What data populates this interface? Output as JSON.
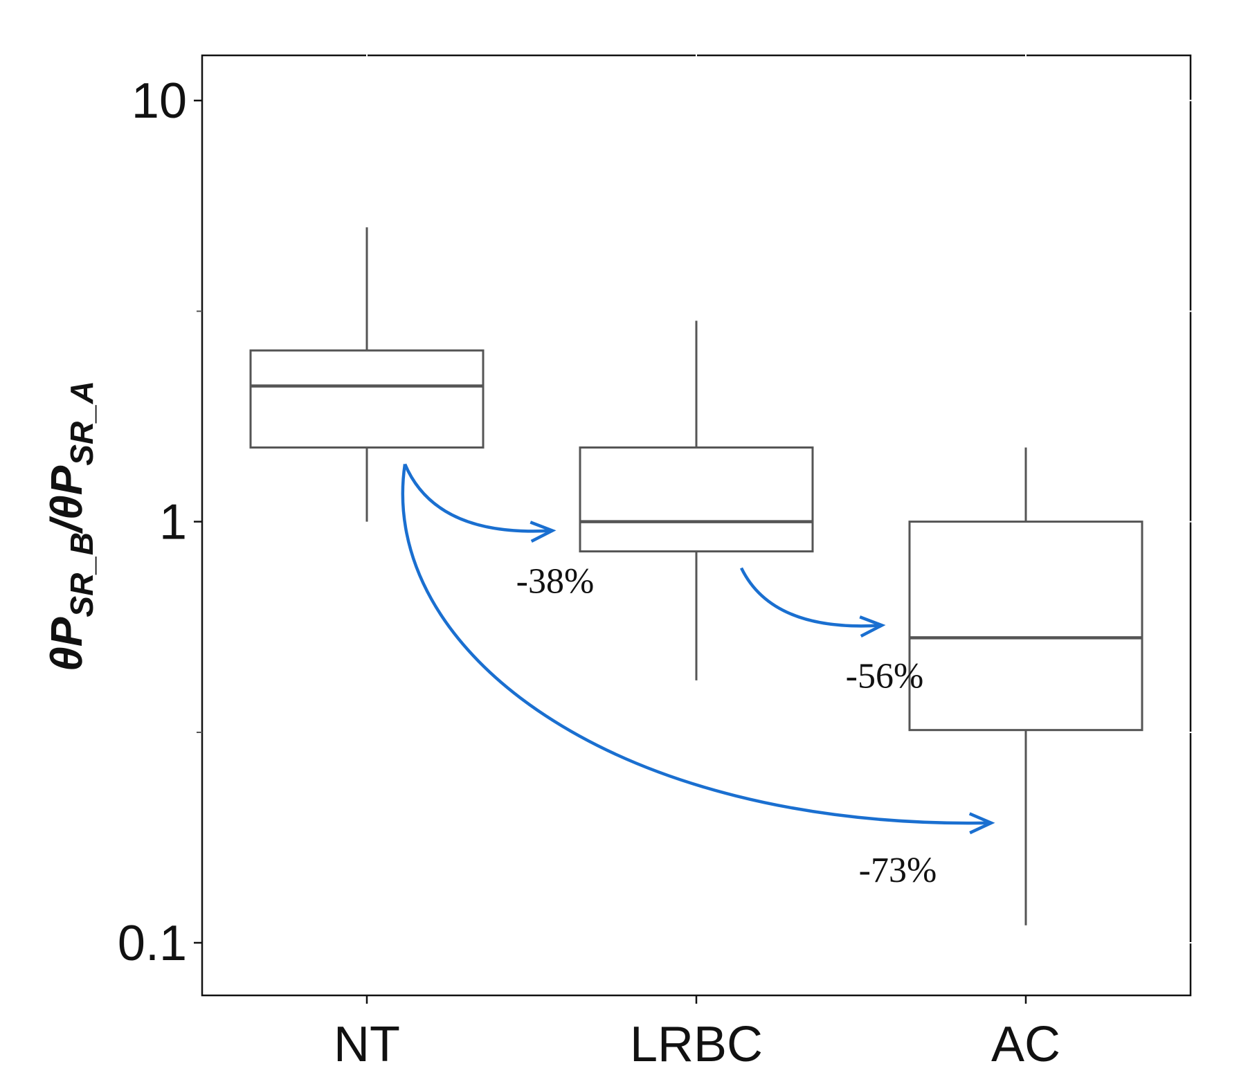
{
  "chart_data": {
    "type": "boxplot",
    "categories": [
      "NT",
      "LRBC",
      "AC"
    ],
    "boxes": [
      {
        "category": "NT",
        "whisker_low": 1.0,
        "q1": 1.5,
        "median": 2.1,
        "q3": 2.55,
        "whisker_high": 5.0
      },
      {
        "category": "LRBC",
        "whisker_low": 0.42,
        "q1": 0.85,
        "median": 1.0,
        "q3": 1.5,
        "whisker_high": 3.0
      },
      {
        "category": "AC",
        "whisker_low": 0.11,
        "q1": 0.32,
        "median": 0.53,
        "q3": 1.0,
        "whisker_high": 1.5
      }
    ],
    "y_scale": "log",
    "ylim": [
      0.075,
      12.8
    ],
    "y_ticks": [
      {
        "value": 10,
        "label": "10"
      },
      {
        "value": 1,
        "label": "1"
      },
      {
        "value": 0.1,
        "label": "0.1"
      }
    ],
    "y_minor_ticks": [
      3.16,
      0.316
    ],
    "ylabel": {
      "base1": "θP",
      "sub1": "SR_B",
      "sep": "/",
      "base2": "θP",
      "sub2": "SR_A"
    },
    "annotations": [
      {
        "text": "-38%",
        "from": "NT",
        "to": "LRBC"
      },
      {
        "text": "-56%",
        "from": "LRBC",
        "to": "AC"
      },
      {
        "text": "-73%",
        "from": "NT",
        "to": "AC"
      }
    ],
    "grid": false,
    "legend": "none",
    "colors": {
      "box": "#555555",
      "arrow": "#1a6fd0",
      "text": "#111111"
    }
  }
}
